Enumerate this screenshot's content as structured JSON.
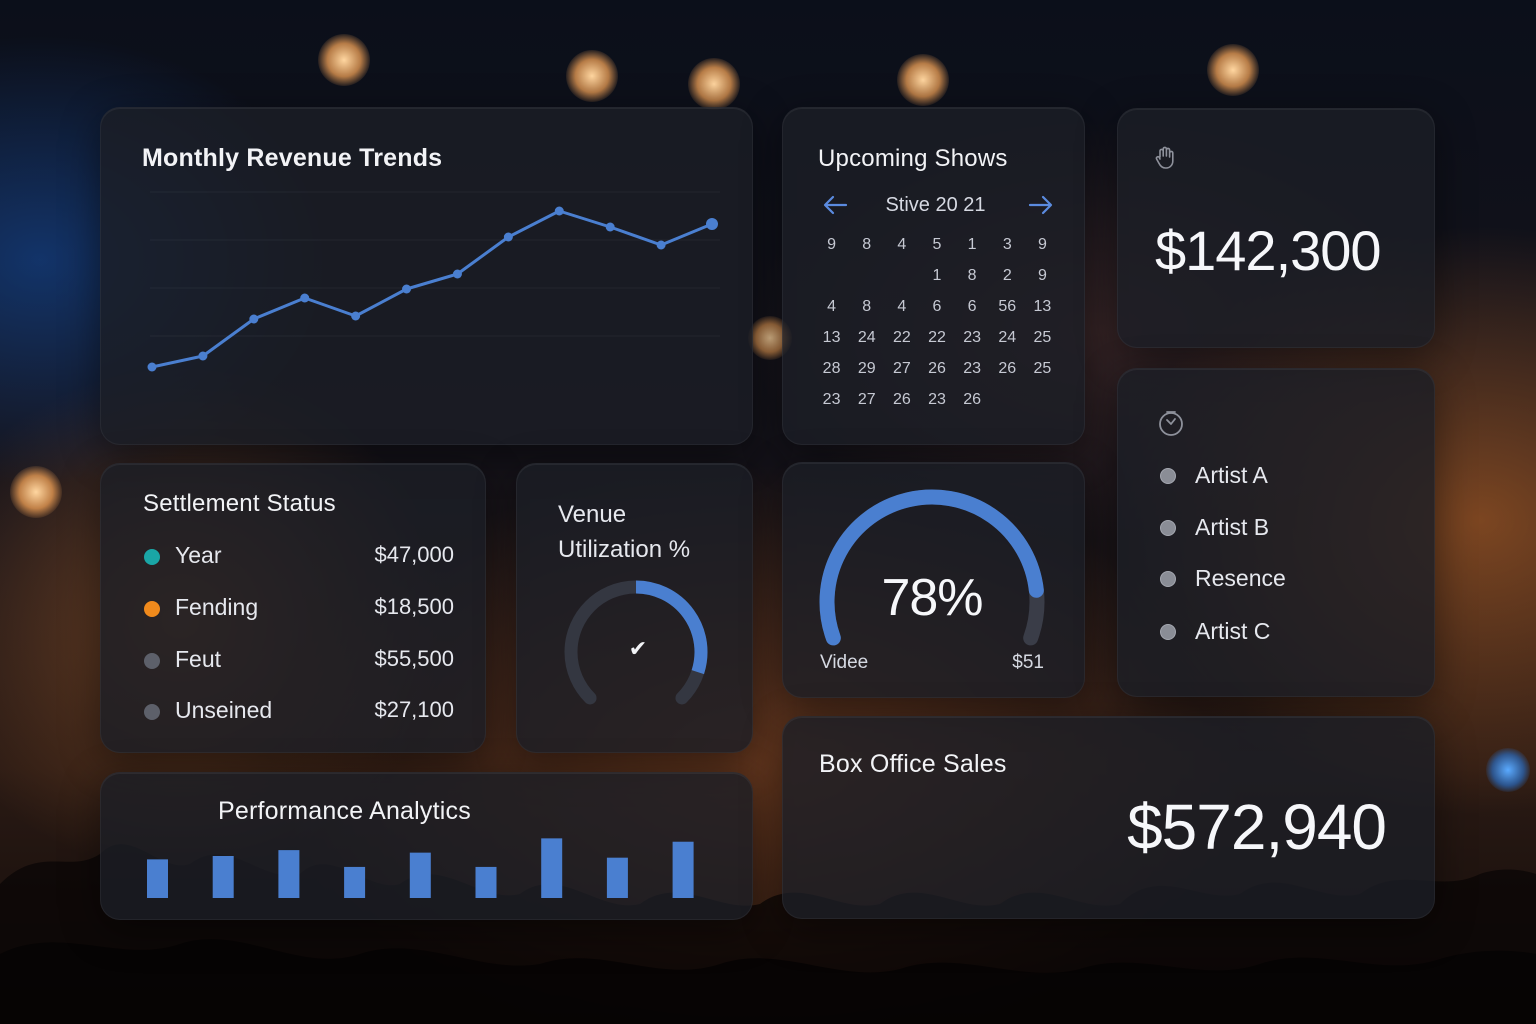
{
  "revenue": {
    "title": "Monthly Revenue Trends",
    "points": [
      367,
      356,
      319,
      298,
      316,
      289,
      274,
      237,
      211,
      227,
      245,
      224
    ]
  },
  "shows": {
    "title": "Upcoming Shows",
    "month_label": "Stive 20 21",
    "prev_icon": "arrow-left-icon",
    "next_icon": "arrow-right-icon",
    "days": [
      "9",
      "8",
      "4",
      "5",
      "1",
      "3",
      "9",
      "",
      "",
      "",
      "1",
      "8",
      "2",
      "9",
      "4",
      "8",
      "4",
      "6",
      "6",
      "56",
      "13",
      "13",
      "24",
      "22",
      "22",
      "23",
      "24",
      "25",
      "28",
      "29",
      "27",
      "26",
      "23",
      "26",
      "25",
      "23",
      "27",
      "26",
      "23",
      "26",
      "",
      ""
    ]
  },
  "total_kpi": {
    "icon": "hand-icon",
    "value": "$142,300"
  },
  "settlement": {
    "title": "Settlement Status",
    "items": [
      {
        "label": "Year",
        "value": "$47,000",
        "color": "#1aa6a6"
      },
      {
        "label": "Fending",
        "value": "$18,500",
        "color": "#f08a1c"
      },
      {
        "label": "Feut",
        "value": "$55,500",
        "color": "#5d606a"
      },
      {
        "label": "Unseined",
        "value": "$27,100",
        "color": "#5d606a"
      }
    ]
  },
  "utilization": {
    "title_line1": "Venue",
    "title_line2": "Utilization %",
    "percent": 0.45,
    "center_icon": "checkmark-icon",
    "center_glyph": "✔"
  },
  "gauge": {
    "value": "78%",
    "fraction": 0.78,
    "left_label": "Videe",
    "right_label": "$51"
  },
  "artists": {
    "icon": "clock-icon",
    "items": [
      "Artist A",
      "Artist B",
      "Resence",
      "Artist C"
    ]
  },
  "performance": {
    "title": "Performance Analytics",
    "bars": [
      0.46,
      0.5,
      0.57,
      0.37,
      0.54,
      0.37,
      0.71,
      0.48,
      0.67
    ]
  },
  "box_office": {
    "title": "Box Office Sales",
    "value": "$572,940"
  },
  "colors": {
    "accent": "#4a7fd0",
    "card": "#1c1e26",
    "track": "#3a3d48"
  }
}
